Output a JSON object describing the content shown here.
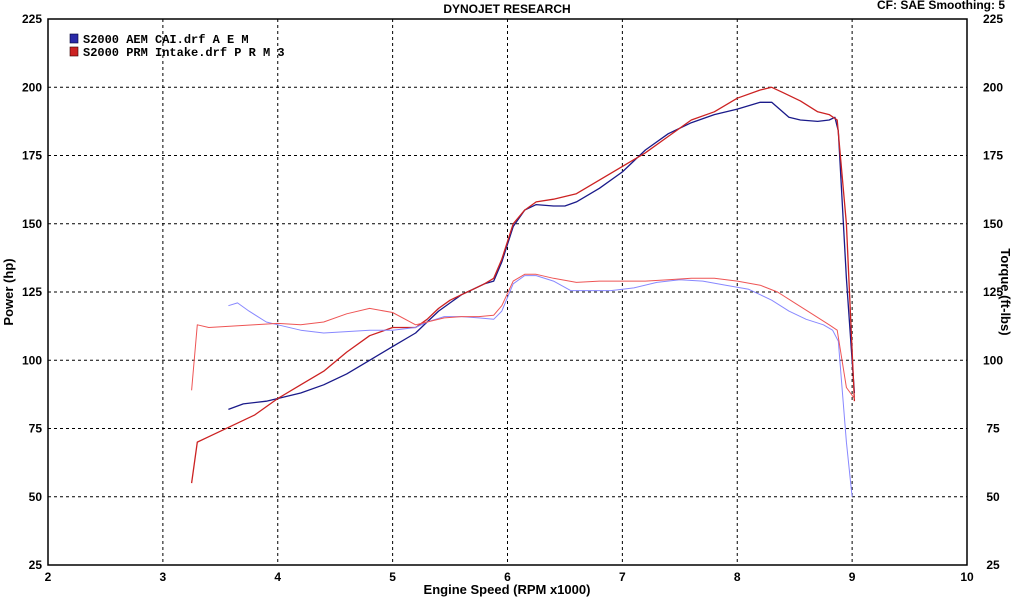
{
  "chart_data": {
    "type": "line",
    "title": "DYNOJET RESEARCH",
    "corner_info": "CF: SAE  Smoothing: 5",
    "xlabel": "Engine Speed (RPM x1000)",
    "ylabel": "Power (hp)",
    "y2label": "Torque (ft-lbs)",
    "xlim": [
      2,
      10
    ],
    "ylim": [
      25,
      225
    ],
    "y2lim": [
      25,
      225
    ],
    "x_ticks": [
      "2",
      "3",
      "4",
      "5",
      "6",
      "7",
      "8",
      "9",
      "10"
    ],
    "y_ticks": [
      "25",
      "50",
      "75",
      "100",
      "125",
      "150",
      "175",
      "200",
      "225"
    ],
    "y2_ticks": [
      "25",
      "50",
      "75",
      "100",
      "125",
      "150",
      "175",
      "200",
      "225"
    ],
    "grid": true,
    "legend_position": "top-left",
    "legend": [
      {
        "label": "S2000 AEM CAI.drf A E M",
        "color": "#2a2aa8"
      },
      {
        "label": "S2000 PRM Intake.drf P R M 3",
        "color": "#cc2222"
      }
    ],
    "series": [
      {
        "name": "S2000 AEM CAI.drf A E M",
        "measure": "power",
        "color": "#1a1a8a",
        "points": [
          [
            3.57,
            82
          ],
          [
            3.7,
            84
          ],
          [
            3.9,
            85
          ],
          [
            4.0,
            86
          ],
          [
            4.2,
            88
          ],
          [
            4.4,
            91
          ],
          [
            4.6,
            95
          ],
          [
            4.8,
            100
          ],
          [
            5.0,
            105
          ],
          [
            5.2,
            110
          ],
          [
            5.3,
            114
          ],
          [
            5.4,
            118
          ],
          [
            5.5,
            121
          ],
          [
            5.6,
            124
          ],
          [
            5.7,
            126
          ],
          [
            5.8,
            128
          ],
          [
            5.88,
            129
          ],
          [
            5.95,
            136
          ],
          [
            6.05,
            149
          ],
          [
            6.15,
            155
          ],
          [
            6.25,
            157
          ],
          [
            6.4,
            156.5
          ],
          [
            6.5,
            156.5
          ],
          [
            6.6,
            158
          ],
          [
            6.8,
            163
          ],
          [
            7.0,
            169
          ],
          [
            7.2,
            177
          ],
          [
            7.4,
            183
          ],
          [
            7.6,
            187
          ],
          [
            7.8,
            190
          ],
          [
            8.0,
            192
          ],
          [
            8.2,
            194.5
          ],
          [
            8.3,
            194.5
          ],
          [
            8.45,
            189
          ],
          [
            8.55,
            188
          ],
          [
            8.7,
            187.5
          ],
          [
            8.8,
            188
          ],
          [
            8.85,
            189
          ],
          [
            8.88,
            184
          ],
          [
            8.95,
            130
          ],
          [
            9.02,
            88
          ]
        ]
      },
      {
        "name": "S2000 PRM Intake.drf P R M 3",
        "measure": "power",
        "color": "#cc2222",
        "points": [
          [
            3.25,
            55
          ],
          [
            3.3,
            70
          ],
          [
            3.4,
            72
          ],
          [
            3.6,
            76
          ],
          [
            3.8,
            80
          ],
          [
            4.0,
            86
          ],
          [
            4.2,
            91
          ],
          [
            4.4,
            96
          ],
          [
            4.6,
            103
          ],
          [
            4.8,
            109
          ],
          [
            5.0,
            112
          ],
          [
            5.2,
            112
          ],
          [
            5.3,
            115
          ],
          [
            5.4,
            119
          ],
          [
            5.5,
            122
          ],
          [
            5.6,
            124
          ],
          [
            5.7,
            126
          ],
          [
            5.8,
            128
          ],
          [
            5.88,
            130
          ],
          [
            5.95,
            137
          ],
          [
            6.05,
            150
          ],
          [
            6.15,
            155
          ],
          [
            6.25,
            158
          ],
          [
            6.4,
            159
          ],
          [
            6.6,
            161
          ],
          [
            6.8,
            166
          ],
          [
            7.0,
            171
          ],
          [
            7.2,
            176
          ],
          [
            7.4,
            182
          ],
          [
            7.6,
            188
          ],
          [
            7.8,
            191
          ],
          [
            8.0,
            196
          ],
          [
            8.2,
            199
          ],
          [
            8.3,
            200
          ],
          [
            8.4,
            198
          ],
          [
            8.55,
            195
          ],
          [
            8.7,
            191
          ],
          [
            8.8,
            190
          ],
          [
            8.87,
            188
          ],
          [
            8.95,
            150
          ],
          [
            9.02,
            85
          ]
        ]
      },
      {
        "name": "S2000 AEM CAI.drf A E M",
        "measure": "torque",
        "color": "#8888ff",
        "points": [
          [
            3.57,
            120
          ],
          [
            3.65,
            121
          ],
          [
            3.75,
            118
          ],
          [
            3.9,
            114
          ],
          [
            4.0,
            113
          ],
          [
            4.2,
            111
          ],
          [
            4.4,
            110
          ],
          [
            4.6,
            110.5
          ],
          [
            4.8,
            111
          ],
          [
            5.0,
            111
          ],
          [
            5.2,
            112
          ],
          [
            5.3,
            114
          ],
          [
            5.45,
            116
          ],
          [
            5.6,
            116
          ],
          [
            5.75,
            115.5
          ],
          [
            5.88,
            115
          ],
          [
            5.95,
            118
          ],
          [
            6.05,
            128
          ],
          [
            6.15,
            131
          ],
          [
            6.25,
            131
          ],
          [
            6.4,
            129
          ],
          [
            6.55,
            125.5
          ],
          [
            6.7,
            125.5
          ],
          [
            6.9,
            125.5
          ],
          [
            7.1,
            126.5
          ],
          [
            7.3,
            128.5
          ],
          [
            7.5,
            129.5
          ],
          [
            7.7,
            129
          ],
          [
            7.9,
            127.5
          ],
          [
            8.1,
            126
          ],
          [
            8.2,
            124
          ],
          [
            8.3,
            122
          ],
          [
            8.45,
            118
          ],
          [
            8.6,
            115
          ],
          [
            8.75,
            113
          ],
          [
            8.83,
            111
          ],
          [
            8.88,
            107
          ],
          [
            8.95,
            70
          ],
          [
            9.0,
            50
          ]
        ]
      },
      {
        "name": "S2000 PRM Intake.drf P R M 3",
        "measure": "torque",
        "color": "#ee5555",
        "points": [
          [
            3.25,
            89
          ],
          [
            3.3,
            113
          ],
          [
            3.4,
            112
          ],
          [
            3.6,
            112.5
          ],
          [
            3.8,
            113
          ],
          [
            4.0,
            113.5
          ],
          [
            4.2,
            113
          ],
          [
            4.4,
            114
          ],
          [
            4.6,
            117
          ],
          [
            4.8,
            119
          ],
          [
            5.0,
            117.5
          ],
          [
            5.2,
            113
          ],
          [
            5.3,
            114
          ],
          [
            5.45,
            115.5
          ],
          [
            5.6,
            116
          ],
          [
            5.75,
            116
          ],
          [
            5.88,
            116.5
          ],
          [
            5.95,
            120
          ],
          [
            6.05,
            129
          ],
          [
            6.15,
            131.5
          ],
          [
            6.25,
            131.5
          ],
          [
            6.4,
            130
          ],
          [
            6.6,
            128.5
          ],
          [
            6.8,
            129
          ],
          [
            7.0,
            129
          ],
          [
            7.2,
            129
          ],
          [
            7.4,
            129.5
          ],
          [
            7.6,
            130
          ],
          [
            7.8,
            130
          ],
          [
            8.0,
            129
          ],
          [
            8.2,
            127.5
          ],
          [
            8.35,
            125
          ],
          [
            8.5,
            121
          ],
          [
            8.65,
            117
          ],
          [
            8.8,
            113
          ],
          [
            8.87,
            111
          ],
          [
            8.95,
            90
          ],
          [
            9.02,
            86
          ]
        ]
      }
    ]
  }
}
